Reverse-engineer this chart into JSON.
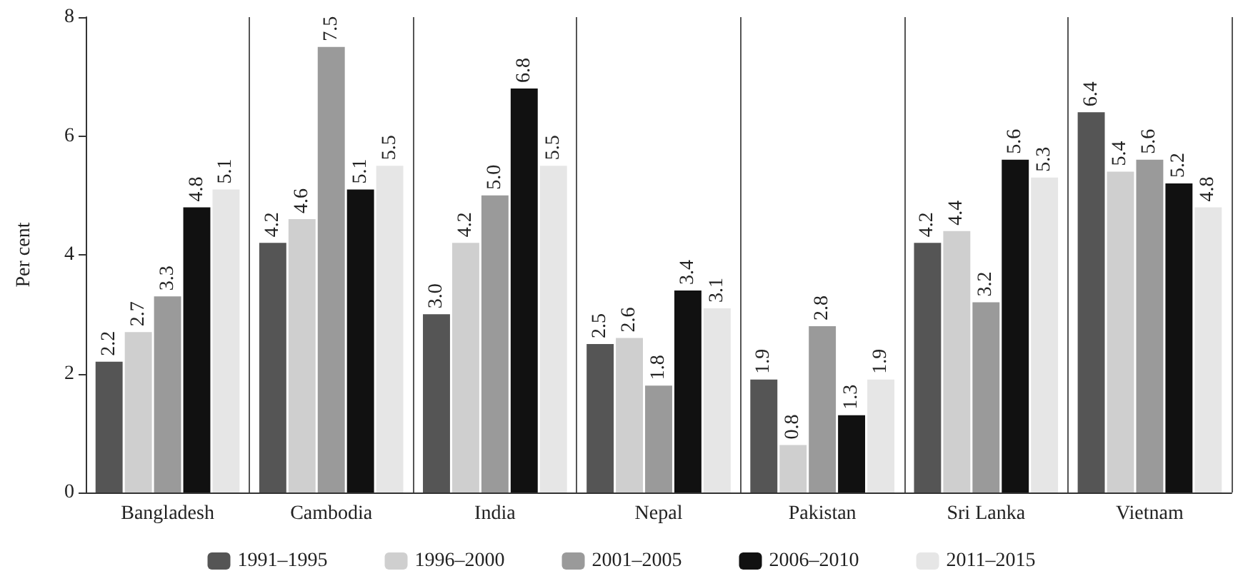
{
  "chart_data": {
    "type": "bar",
    "ylabel": "Per cent",
    "categories": [
      "Bangladesh",
      "Cambodia",
      "India",
      "Nepal",
      "Pakistan",
      "Sri Lanka",
      "Vietnam"
    ],
    "series": [
      {
        "name": "1991–1995",
        "color": "#555555",
        "values": [
          2.2,
          4.2,
          3.0,
          2.5,
          1.9,
          4.2,
          6.4
        ]
      },
      {
        "name": "1996–2000",
        "color": "#cfcfcf",
        "values": [
          2.7,
          4.6,
          4.2,
          2.6,
          0.8,
          4.4,
          5.4
        ]
      },
      {
        "name": "2001–2005",
        "color": "#9a9a9a",
        "values": [
          3.3,
          7.5,
          5.0,
          1.8,
          2.8,
          3.2,
          5.6
        ]
      },
      {
        "name": "2006–2010",
        "color": "#111111",
        "values": [
          4.8,
          5.1,
          6.8,
          3.4,
          1.3,
          5.6,
          5.2
        ]
      },
      {
        "name": "2011–2015",
        "color": "#e6e6e6",
        "values": [
          5.1,
          5.5,
          5.5,
          3.1,
          1.9,
          5.3,
          4.8
        ]
      }
    ],
    "value_labels": [
      [
        "2.2",
        "4.2",
        "3.0",
        "2.5",
        "1.9",
        "4.2",
        "6.4"
      ],
      [
        "2.7",
        "4.6",
        "4.2",
        "2.6",
        "0.8",
        "4.4",
        "5.4"
      ],
      [
        "3.3",
        "7.5",
        "5.0",
        "1.8",
        "2.8",
        "3.2",
        "5.6"
      ],
      [
        "4.8",
        "5.1",
        "6.8",
        "3.4",
        "1.3",
        "5.6",
        "5.2"
      ],
      [
        "5.1",
        "5.5",
        "5.5",
        "3.1",
        "1.9",
        "5.3",
        "4.8"
      ]
    ],
    "ylim": [
      0,
      8
    ],
    "yticks": [
      0,
      2,
      4,
      6,
      8
    ],
    "grid": "x",
    "legend": "bottom"
  }
}
